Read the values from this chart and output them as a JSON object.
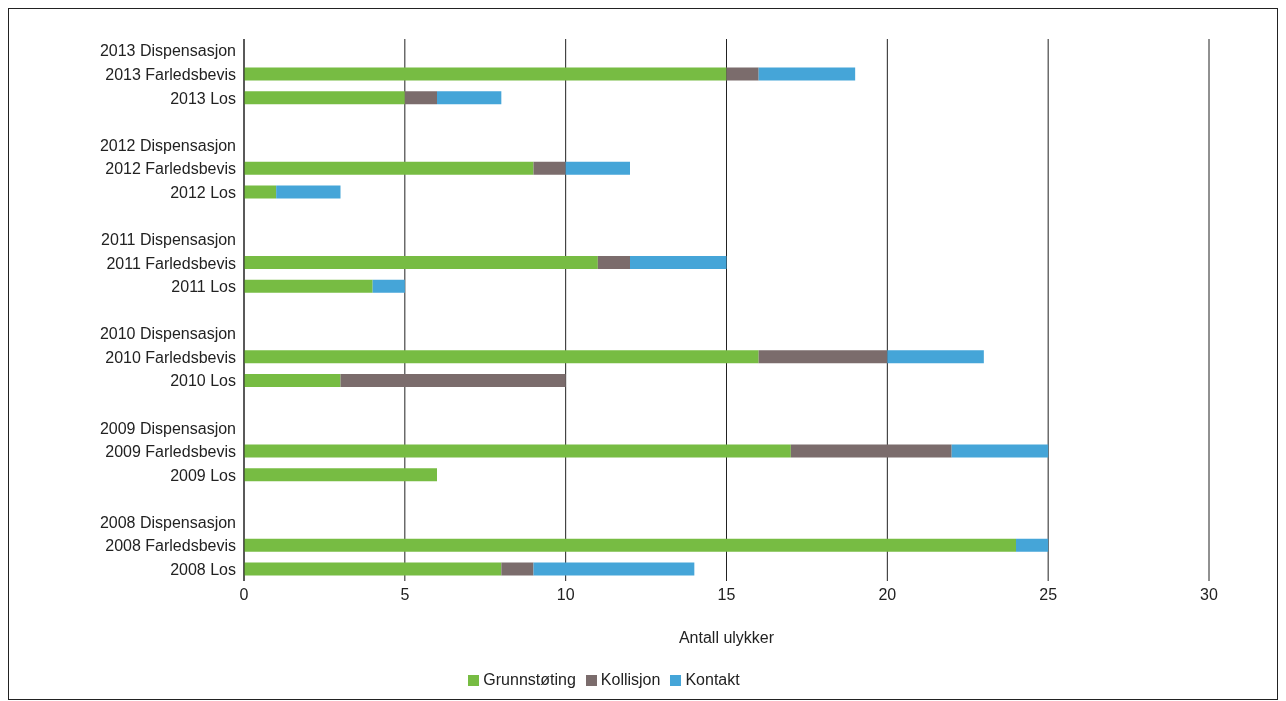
{
  "chart_data": {
    "type": "bar",
    "orientation": "horizontal",
    "stacked": true,
    "categories": [
      "2013 Dispensasjon",
      "2013 Farledsbevis",
      "2013 Los",
      null,
      "2012 Dispensasjon",
      "2012 Farledsbevis",
      "2012 Los",
      null,
      "2011 Dispensasjon",
      "2011 Farledsbevis",
      "2011 Los",
      null,
      "2010 Dispensasjon",
      "2010 Farledsbevis",
      "2010 Los",
      null,
      "2009 Dispensasjon",
      "2009 Farledsbevis",
      "2009 Los",
      null,
      "2008 Dispensasjon",
      "2008 Farledsbevis",
      "2008 Los"
    ],
    "series": [
      {
        "name": "Grunnstøting",
        "color": "#77bc43",
        "values": [
          null,
          15,
          5,
          null,
          null,
          9,
          1,
          null,
          null,
          11,
          4,
          null,
          null,
          16,
          3,
          null,
          null,
          17,
          6,
          null,
          null,
          24,
          8
        ]
      },
      {
        "name": "Kollisjon",
        "color": "#7b6c6c",
        "values": [
          null,
          1,
          1,
          null,
          null,
          1,
          0,
          null,
          null,
          1,
          0,
          null,
          null,
          4,
          7,
          null,
          null,
          5,
          0,
          null,
          null,
          0,
          1
        ]
      },
      {
        "name": "Kontakt",
        "color": "#45a5d8",
        "values": [
          null,
          3,
          2,
          null,
          null,
          2,
          2,
          null,
          null,
          3,
          1,
          null,
          null,
          3,
          0,
          null,
          null,
          3,
          0,
          null,
          null,
          1,
          5
        ]
      }
    ],
    "xlabel": "Antall ulykker",
    "xlim": [
      0,
      30
    ],
    "xticks": [
      0,
      5,
      10,
      15,
      20,
      25,
      30
    ],
    "grid": "x",
    "legend": "bottom"
  }
}
